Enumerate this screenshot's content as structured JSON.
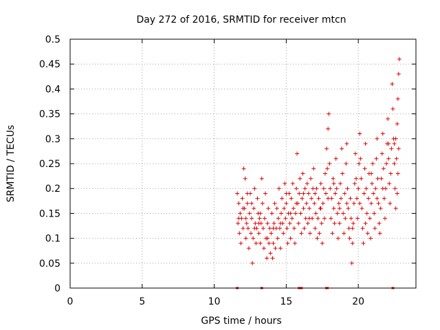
{
  "chart_data": {
    "type": "scatter",
    "title": "Day 272 of 2016, SRMTID for receiver mtcn",
    "xlabel": "GPS time / hours",
    "ylabel": "SRMTID / TECUs",
    "xlim": [
      0,
      24
    ],
    "ylim": [
      0,
      0.5
    ],
    "xticks": [
      0,
      5,
      10,
      15,
      20
    ],
    "yticks": [
      0,
      0.05,
      0.1,
      0.15,
      0.2,
      0.25,
      0.3,
      0.35,
      0.4,
      0.45,
      0.5
    ],
    "xtick_labels": [
      "0",
      "5",
      "10",
      "15",
      "20"
    ],
    "ytick_labels": [
      "0",
      "0.05",
      "0.1",
      "0.15",
      "0.2",
      "0.25",
      "0.3",
      "0.35",
      "0.4",
      "0.45",
      "0.5"
    ],
    "grid": true,
    "marker": "+",
    "color": "#e00000",
    "x_range_of_data": [
      11.55,
      22.85
    ],
    "zero_value_times": [
      11.6,
      13.3,
      15.9,
      16.05,
      17.8,
      17.85,
      22.4
    ],
    "series": [
      {
        "name": "SRMTID",
        "points": [
          [
            11.6,
            0.19
          ],
          [
            11.65,
            0.13
          ],
          [
            11.7,
            0.17
          ],
          [
            11.75,
            0.11
          ],
          [
            11.8,
            0.15
          ],
          [
            11.85,
            0.09
          ],
          [
            11.9,
            0.14
          ],
          [
            11.95,
            0.18
          ],
          [
            12.0,
            0.12
          ],
          [
            12.05,
            0.24
          ],
          [
            12.1,
            0.16
          ],
          [
            12.15,
            0.22
          ],
          [
            12.2,
            0.1
          ],
          [
            12.25,
            0.13
          ],
          [
            12.3,
            0.17
          ],
          [
            12.35,
            0.12
          ],
          [
            12.4,
            0.08
          ],
          [
            12.45,
            0.15
          ],
          [
            12.5,
            0.19
          ],
          [
            12.55,
            0.11
          ],
          [
            12.6,
            0.14
          ],
          [
            12.65,
            0.05
          ],
          [
            12.7,
            0.1
          ],
          [
            12.75,
            0.16
          ],
          [
            12.8,
            0.2
          ],
          [
            12.85,
            0.13
          ],
          [
            12.9,
            0.09
          ],
          [
            12.95,
            0.12
          ],
          [
            13.0,
            0.18
          ],
          [
            13.05,
            0.15
          ],
          [
            13.1,
            0.11
          ],
          [
            13.15,
            0.14
          ],
          [
            13.2,
            0.09
          ],
          [
            13.25,
            0.13
          ],
          [
            13.3,
            0.22
          ],
          [
            13.35,
            0.17
          ],
          [
            13.4,
            0.12
          ],
          [
            13.45,
            0.08
          ],
          [
            13.5,
            0.14
          ],
          [
            13.55,
            0.19
          ],
          [
            13.6,
            0.1
          ],
          [
            13.65,
            0.06
          ],
          [
            13.7,
            0.13
          ],
          [
            13.75,
            0.16
          ],
          [
            13.8,
            0.09
          ],
          [
            13.85,
            0.12
          ],
          [
            13.9,
            0.07
          ],
          [
            13.95,
            0.11
          ],
          [
            14.0,
            0.15
          ],
          [
            14.05,
            0.06
          ],
          [
            14.1,
            0.09
          ],
          [
            14.15,
            0.13
          ],
          [
            14.2,
            0.17
          ],
          [
            14.25,
            0.08
          ],
          [
            14.3,
            0.12
          ],
          [
            14.35,
            0.16
          ],
          [
            14.4,
            0.1
          ],
          [
            14.45,
            0.14
          ],
          [
            14.5,
            0.2
          ],
          [
            14.55,
            0.12
          ],
          [
            14.6,
            0.08
          ],
          [
            14.65,
            0.15
          ],
          [
            14.7,
            0.18
          ],
          [
            14.75,
            0.13
          ],
          [
            14.8,
            0.11
          ],
          [
            14.85,
            0.16
          ],
          [
            14.9,
            0.21
          ],
          [
            14.95,
            0.14
          ],
          [
            15.0,
            0.17
          ],
          [
            15.05,
            0.12
          ],
          [
            15.1,
            0.09
          ],
          [
            15.15,
            0.15
          ],
          [
            15.2,
            0.19
          ],
          [
            15.25,
            0.13
          ],
          [
            15.3,
            0.1
          ],
          [
            15.35,
            0.18
          ],
          [
            15.4,
            0.14
          ],
          [
            15.45,
            0.21
          ],
          [
            15.5,
            0.16
          ],
          [
            15.55,
            0.12
          ],
          [
            15.6,
            0.09
          ],
          [
            15.65,
            0.15
          ],
          [
            15.7,
            0.2
          ],
          [
            15.75,
            0.27
          ],
          [
            15.8,
            0.17
          ],
          [
            15.85,
            0.13
          ],
          [
            15.9,
            0.19
          ],
          [
            15.95,
            0.22
          ],
          [
            16.0,
            0.15
          ],
          [
            16.05,
            0.11
          ],
          [
            16.1,
            0.18
          ],
          [
            16.15,
            0.23
          ],
          [
            16.2,
            0.16
          ],
          [
            16.25,
            0.12
          ],
          [
            16.3,
            0.2
          ],
          [
            16.35,
            0.14
          ],
          [
            16.4,
            0.17
          ],
          [
            16.45,
            0.21
          ],
          [
            16.5,
            0.13
          ],
          [
            16.55,
            0.19
          ],
          [
            16.6,
            0.16
          ],
          [
            16.65,
            0.11
          ],
          [
            16.7,
            0.22
          ],
          [
            16.75,
            0.18
          ],
          [
            16.8,
            0.14
          ],
          [
            16.85,
            0.2
          ],
          [
            16.9,
            0.24
          ],
          [
            16.95,
            0.17
          ],
          [
            17.0,
            0.12
          ],
          [
            17.05,
            0.15
          ],
          [
            17.1,
            0.2
          ],
          [
            17.15,
            0.1
          ],
          [
            17.2,
            0.14
          ],
          [
            17.25,
            0.18
          ],
          [
            17.3,
            0.11
          ],
          [
            17.35,
            0.16
          ],
          [
            17.4,
            0.21
          ],
          [
            17.45,
            0.13
          ],
          [
            17.5,
            0.09
          ],
          [
            17.55,
            0.17
          ],
          [
            17.6,
            0.2
          ],
          [
            17.65,
            0.14
          ],
          [
            17.7,
            0.23
          ],
          [
            17.75,
            0.19
          ],
          [
            17.8,
            0.28
          ],
          [
            17.85,
            0.24
          ],
          [
            17.9,
            0.32
          ],
          [
            17.95,
            0.35
          ],
          [
            18.0,
            0.25
          ],
          [
            18.05,
            0.2
          ],
          [
            18.1,
            0.14
          ],
          [
            18.15,
            0.18
          ],
          [
            18.2,
            0.11
          ],
          [
            18.25,
            0.22
          ],
          [
            18.3,
            0.16
          ],
          [
            18.35,
            0.13
          ],
          [
            18.4,
            0.19
          ],
          [
            18.45,
            0.26
          ],
          [
            18.5,
            0.2
          ],
          [
            18.55,
            0.15
          ],
          [
            18.6,
            0.1
          ],
          [
            18.65,
            0.17
          ],
          [
            18.7,
            0.13
          ],
          [
            18.75,
            0.21
          ],
          [
            18.8,
            0.18
          ],
          [
            18.85,
            0.28
          ],
          [
            18.9,
            0.23
          ],
          [
            18.95,
            0.15
          ],
          [
            19.0,
            0.11
          ],
          [
            19.05,
            0.19
          ],
          [
            19.1,
            0.14
          ],
          [
            19.15,
            0.25
          ],
          [
            19.2,
            0.29
          ],
          [
            19.25,
            0.2
          ],
          [
            19.3,
            0.16
          ],
          [
            19.35,
            0.12
          ],
          [
            19.4,
            0.1
          ],
          [
            19.45,
            0.18
          ],
          [
            19.5,
            0.14
          ],
          [
            19.55,
            0.05
          ],
          [
            19.6,
            0.09
          ],
          [
            19.65,
            0.13
          ],
          [
            19.7,
            0.17
          ],
          [
            19.75,
            0.21
          ],
          [
            19.8,
            0.27
          ],
          [
            19.85,
            0.22
          ],
          [
            19.9,
            0.18
          ],
          [
            19.95,
            0.14
          ],
          [
            20.0,
            0.2
          ],
          [
            20.05,
            0.25
          ],
          [
            20.1,
            0.31
          ],
          [
            20.15,
            0.26
          ],
          [
            20.2,
            0.22
          ],
          [
            20.25,
            0.16
          ],
          [
            20.3,
            0.12
          ],
          [
            20.35,
            0.09
          ],
          [
            20.4,
            0.19
          ],
          [
            20.45,
            0.24
          ],
          [
            20.5,
            0.29
          ],
          [
            20.55,
            0.2
          ],
          [
            20.6,
            0.15
          ],
          [
            20.65,
            0.11
          ],
          [
            20.7,
            0.18
          ],
          [
            20.75,
            0.23
          ],
          [
            20.8,
            0.14
          ],
          [
            20.85,
            0.1
          ],
          [
            20.9,
            0.17
          ],
          [
            20.95,
            0.21
          ],
          [
            21.0,
            0.25
          ],
          [
            21.05,
            0.19
          ],
          [
            21.1,
            0.15
          ],
          [
            21.15,
            0.12
          ],
          [
            21.2,
            0.2
          ],
          [
            21.25,
            0.26
          ],
          [
            21.3,
            0.3
          ],
          [
            21.35,
            0.22
          ],
          [
            21.4,
            0.17
          ],
          [
            21.45,
            0.13
          ],
          [
            21.5,
            0.11
          ],
          [
            21.55,
            0.16
          ],
          [
            21.6,
            0.22
          ],
          [
            21.65,
            0.27
          ],
          [
            21.7,
            0.31
          ],
          [
            21.75,
            0.24
          ],
          [
            21.8,
            0.18
          ],
          [
            21.85,
            0.14
          ],
          [
            21.9,
            0.2
          ],
          [
            21.95,
            0.25
          ],
          [
            22.0,
            0.29
          ],
          [
            22.05,
            0.34
          ],
          [
            22.1,
            0.26
          ],
          [
            22.15,
            0.21
          ],
          [
            22.2,
            0.17
          ],
          [
            22.25,
            0.23
          ],
          [
            22.3,
            0.28
          ],
          [
            22.35,
            0.41
          ],
          [
            22.4,
            0.36
          ],
          [
            22.45,
            0.3
          ],
          [
            22.5,
            0.25
          ],
          [
            22.55,
            0.2
          ],
          [
            22.6,
            0.16
          ],
          [
            22.65,
            0.26
          ],
          [
            22.7,
            0.33
          ],
          [
            22.75,
            0.38
          ],
          [
            22.8,
            0.43
          ],
          [
            22.85,
            0.46
          ],
          [
            22.8,
            0.28
          ],
          [
            22.75,
            0.23
          ],
          [
            22.7,
            0.19
          ],
          [
            22.6,
            0.3
          ],
          [
            12.0,
            0.16
          ],
          [
            12.3,
            0.19
          ],
          [
            12.8,
            0.12
          ],
          [
            13.2,
            0.15
          ],
          [
            13.7,
            0.1
          ],
          [
            14.1,
            0.12
          ],
          [
            14.6,
            0.13
          ],
          [
            15.0,
            0.19
          ],
          [
            15.3,
            0.15
          ],
          [
            15.7,
            0.17
          ],
          [
            16.2,
            0.19
          ],
          [
            16.6,
            0.14
          ],
          [
            17.0,
            0.19
          ],
          [
            17.4,
            0.16
          ],
          [
            17.9,
            0.18
          ],
          [
            18.3,
            0.21
          ],
          [
            18.7,
            0.16
          ],
          [
            19.2,
            0.17
          ],
          [
            19.6,
            0.12
          ],
          [
            20.1,
            0.17
          ],
          [
            20.5,
            0.13
          ],
          [
            20.9,
            0.23
          ],
          [
            21.3,
            0.18
          ],
          [
            21.7,
            0.2
          ],
          [
            22.1,
            0.29
          ],
          [
            22.5,
            0.29
          ],
          [
            11.7,
            0.14
          ],
          [
            12.2,
            0.14
          ],
          [
            12.6,
            0.17
          ],
          [
            13.1,
            0.13
          ]
        ]
      }
    ]
  }
}
